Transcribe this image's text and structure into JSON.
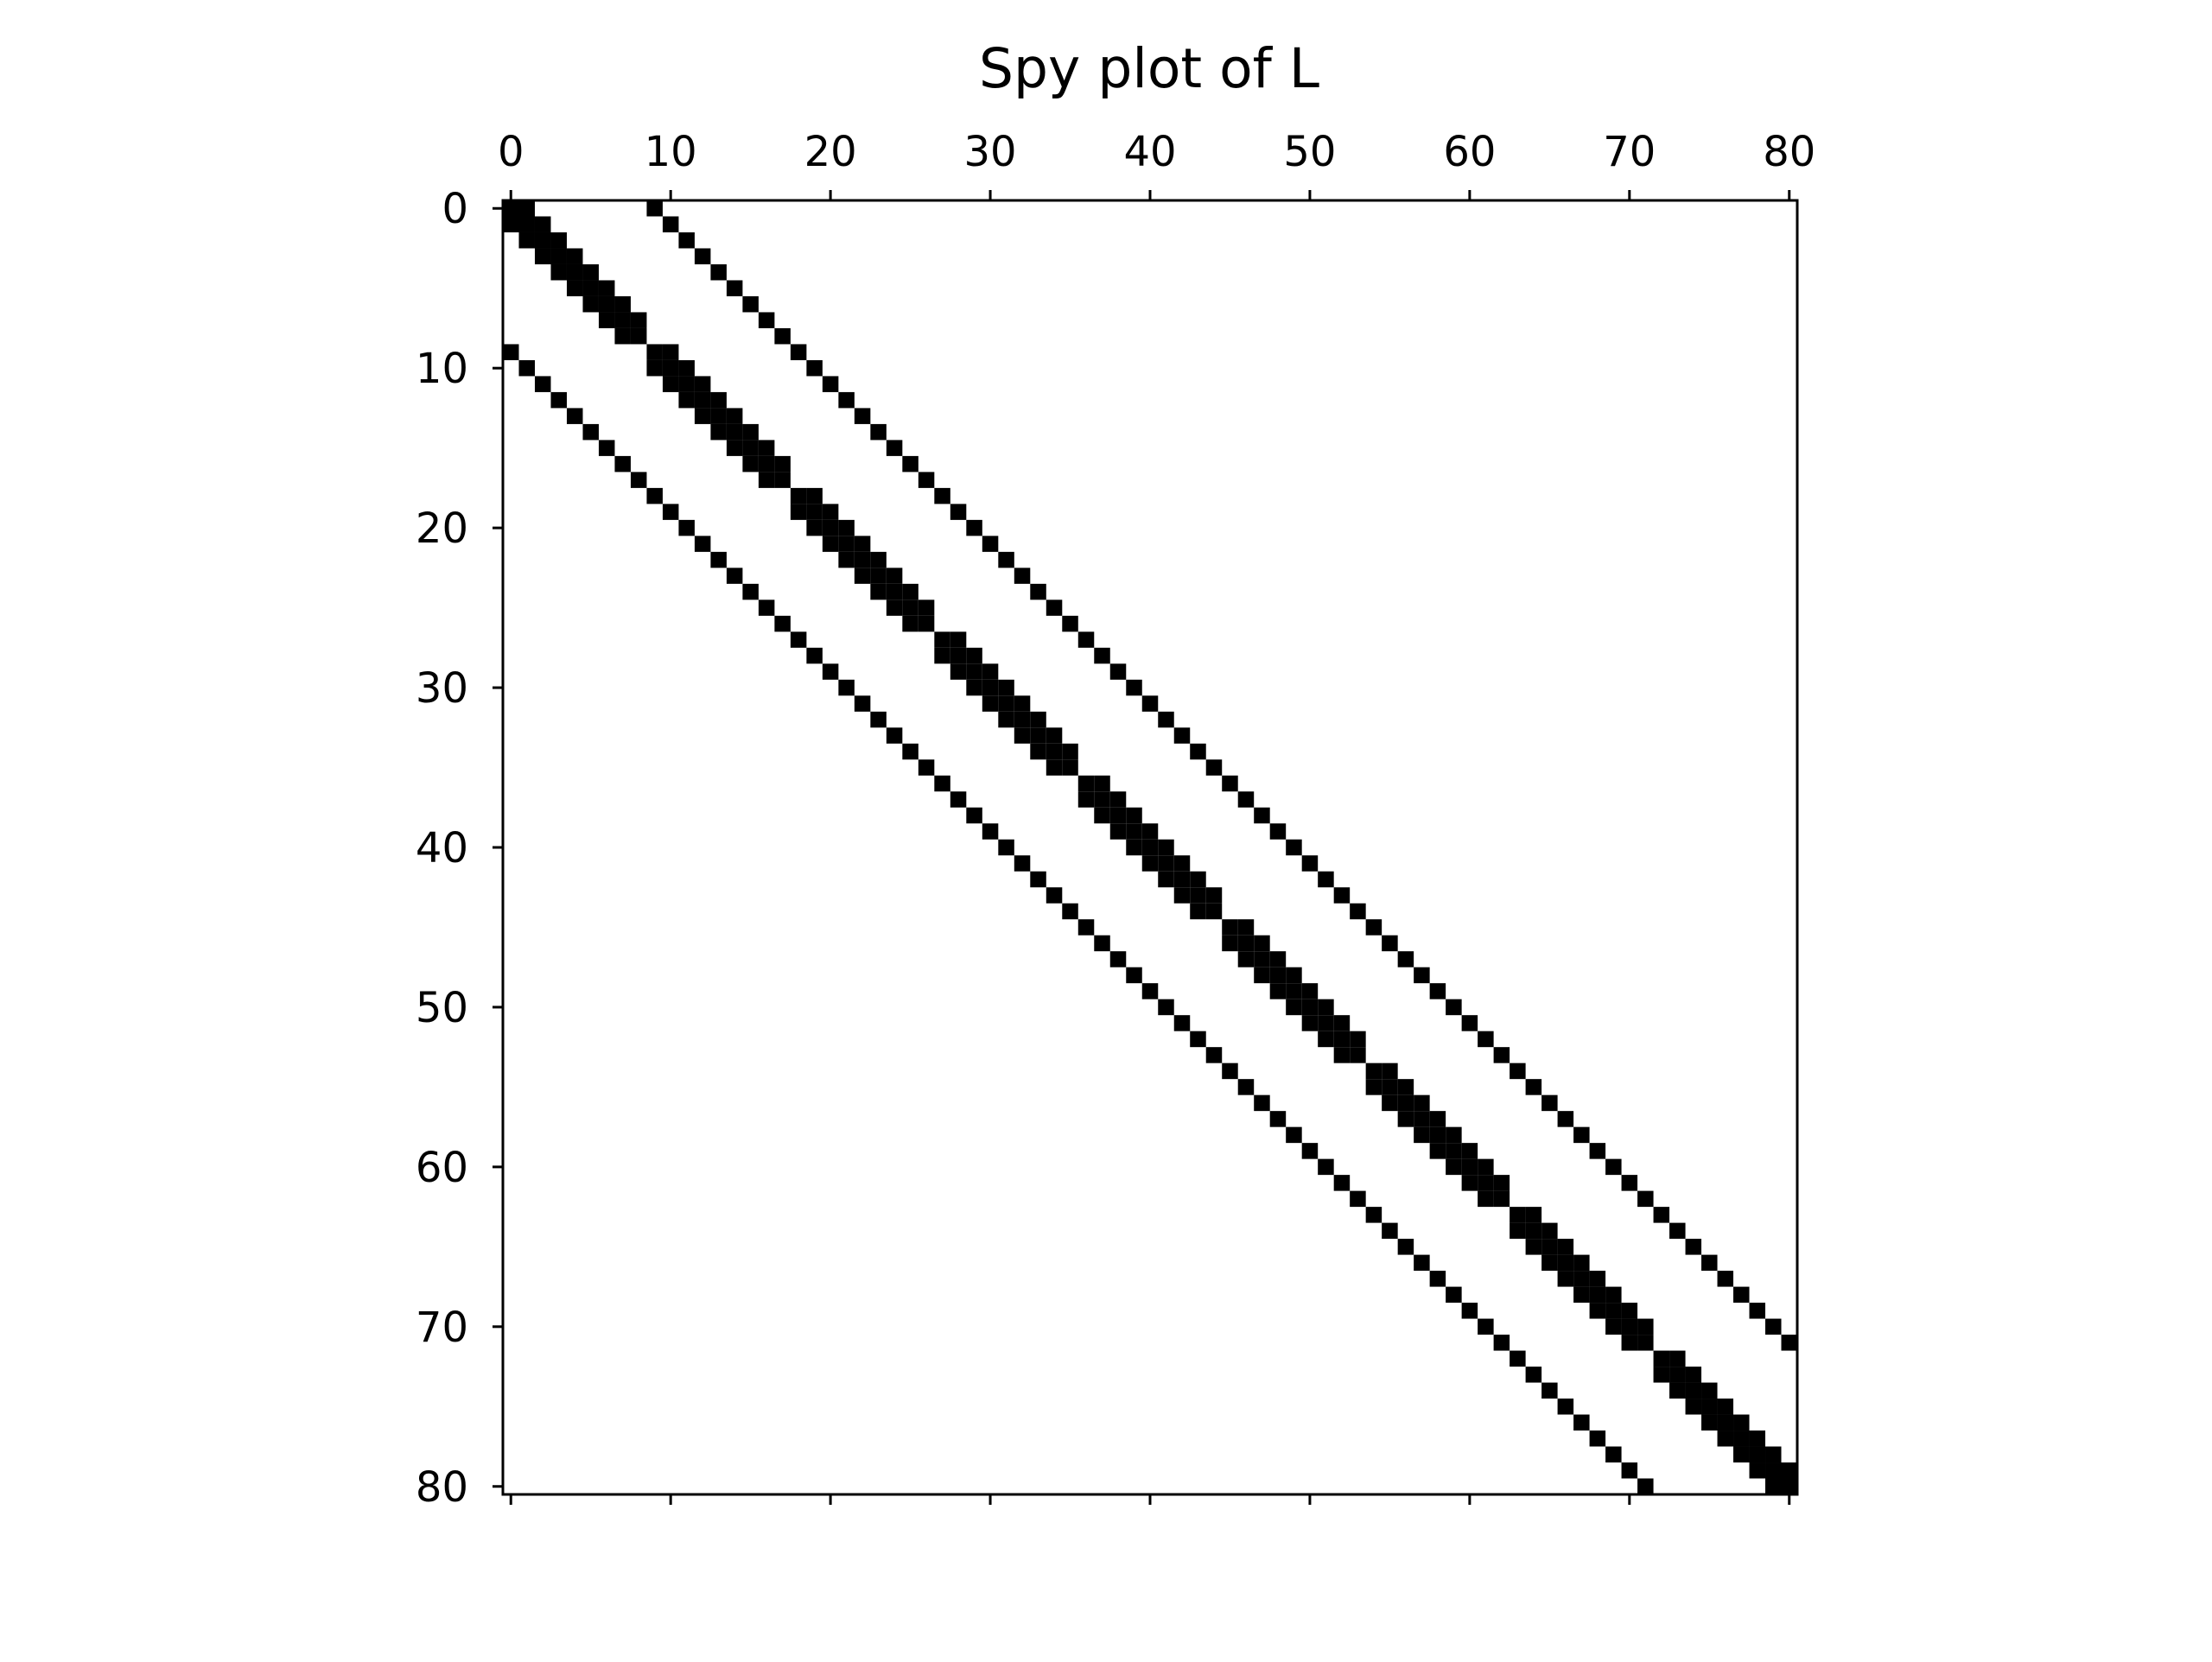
{
  "chart_data": {
    "type": "heatmap",
    "subtype": "spy",
    "title": "Spy plot of L",
    "size": 81,
    "marker_color": "#000000",
    "background_color": "#ffffff",
    "x_axis_position": "top",
    "xlim": [
      0,
      80
    ],
    "ylim": [
      80,
      0
    ],
    "xticks": [
      0,
      10,
      20,
      30,
      40,
      50,
      60,
      70,
      80
    ],
    "yticks": [
      0,
      10,
      20,
      30,
      40,
      50,
      60,
      70,
      80
    ],
    "xtick_labels": [
      "0",
      "10",
      "20",
      "30",
      "40",
      "50",
      "60",
      "70",
      "80"
    ],
    "ytick_labels": [
      "0",
      "10",
      "20",
      "30",
      "40",
      "50",
      "60",
      "70",
      "80"
    ],
    "grid": false,
    "block_size": 9,
    "nonzero_pattern": [
      "diagonal (i, i)",
      "(i, i±1) within each 9-row block",
      "(i, i±9)"
    ]
  }
}
